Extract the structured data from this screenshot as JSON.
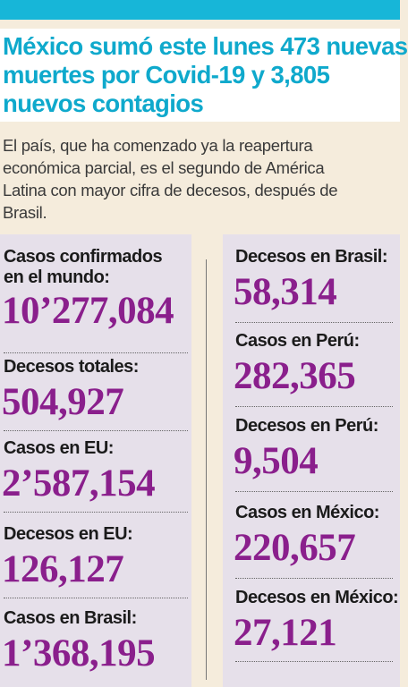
{
  "headline": {
    "lines": [
      "México sumó este lunes 473 nuevas",
      "muertes por Covid-19 y 3,805",
      "nuevos contagios"
    ]
  },
  "lede": {
    "lines": [
      "El país, que ha comenzado ya la reapertura",
      "económica parcial, es el segundo de América",
      "Latina con mayor cifra de decesos, después de",
      "Brasil."
    ]
  },
  "left_stats": [
    {
      "label_lines": [
        "Casos confirmados",
        "en el mundo:"
      ],
      "value": "10’277,084"
    },
    {
      "label_lines": [
        "Decesos totales:"
      ],
      "value": "504,927"
    },
    {
      "label_lines": [
        "Casos en EU:"
      ],
      "value": "2’587,154"
    },
    {
      "label_lines": [
        "Decesos en EU:"
      ],
      "value": "126,127"
    },
    {
      "label_lines": [
        "Casos en Brasil:"
      ],
      "value": "1’368,195"
    }
  ],
  "right_stats": [
    {
      "label_lines": [
        "Decesos en Brasil:"
      ],
      "value": "58,314"
    },
    {
      "label_lines": [
        "Casos en Perú:"
      ],
      "value": "282,365"
    },
    {
      "label_lines": [
        "Decesos en Perú:"
      ],
      "value": "9,504"
    },
    {
      "label_lines": [
        "Casos en México:"
      ],
      "value": "220,657"
    },
    {
      "label_lines": [
        "Decesos en México:"
      ],
      "value": "27,121"
    }
  ],
  "colors": {
    "background": "#f5ecdc",
    "topbar": "#17b6d8",
    "headline": "#0fa9cc",
    "panel": "#e6e0ea",
    "value": "#8a1f8c"
  }
}
